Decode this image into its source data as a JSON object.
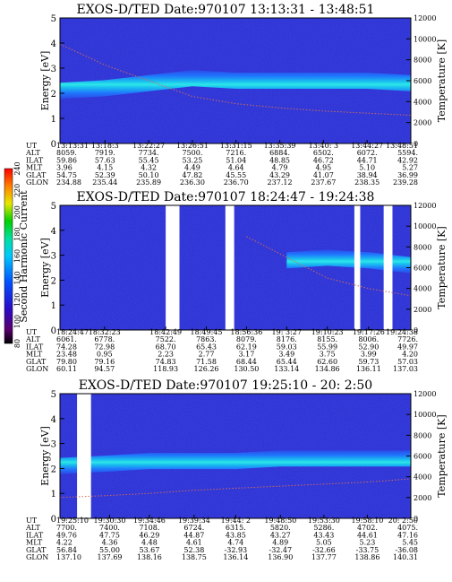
{
  "panels": [
    {
      "title": "EXOS-D/TED   Date:970107   13:13:31 - 13:48:51",
      "ylabel_left": "Energy [eV]",
      "ylabel_right": "Temperature [K]",
      "y_ticks_left": [
        "0",
        "1",
        "2",
        "3",
        "4",
        "5"
      ],
      "y_ticks_right": [
        "0",
        "2000",
        "4000",
        "6000",
        "8000",
        "10000",
        "12000"
      ],
      "ephemeris": {
        "row_labels": [
          "UT",
          "ALT",
          "ILAT",
          "MLT",
          "GLAT",
          "GLON"
        ],
        "columns": [
          [
            "13:13:31",
            "8059.",
            "59.86",
            "3.96",
            "54.75",
            "234.88"
          ],
          [
            "13:18:3",
            "7919.",
            "57.63",
            "4.15",
            "52.39",
            "235.44"
          ],
          [
            "13:22:27",
            "7734.",
            "55.45",
            "4.32",
            "50.10",
            "235.89"
          ],
          [
            "13:26:51",
            "7500.",
            "53.25",
            "4.49",
            "47.82",
            "236.30"
          ],
          [
            "13:31:15",
            "7216.",
            "51.04",
            "4.64",
            "45.55",
            "236.70"
          ],
          [
            "13:35:39",
            "6884.",
            "48.85",
            "4.79",
            "43.29",
            "237.12"
          ],
          [
            "13:40: 3",
            "6502.",
            "46.72",
            "4.95",
            "41.07",
            "237.67"
          ],
          [
            "13:44:27",
            "6072.",
            "44.71",
            "5.10",
            "38.94",
            "238.35"
          ],
          [
            "13:48:51",
            "5594.",
            "42.92",
            "5.27",
            "36.99",
            "239.28"
          ]
        ]
      }
    },
    {
      "title": "EXOS-D/TED   Date:970107   18:24:47 - 19:24:38",
      "ylabel_left": "Energy [eV]",
      "ylabel_right": "Temperature [K]",
      "y_ticks_left": [
        "0",
        "1",
        "2",
        "3",
        "4",
        "5"
      ],
      "y_ticks_right": [
        "0",
        "2000",
        "4000",
        "6000",
        "8000",
        "10000",
        "12000"
      ],
      "ephemeris": {
        "row_labels": [
          "UT",
          "ALT",
          "ILAT",
          "MLT",
          "GLAT",
          "GLON"
        ],
        "columns": [
          [
            "18:24:47",
            "6061.",
            "74.28",
            "23.48",
            "79.80",
            "60.11"
          ],
          [
            "18:32:23",
            "6778.",
            "72.98",
            "0.95",
            "79.16",
            "94.57"
          ],
          [
            "18:42:49",
            "7522.",
            "68.70",
            "2.23",
            "74.83",
            "118.93"
          ],
          [
            "18:49:45",
            "7863.",
            "65.43",
            "2.77",
            "71.58",
            "126.26"
          ],
          [
            "18:56:36",
            "8079.",
            "62.19",
            "3.17",
            "68.44",
            "130.50"
          ],
          [
            "19: 3:27",
            "8176.",
            "59.03",
            "3.49",
            "65.44",
            "133.14"
          ],
          [
            "19:10:23",
            "8155.",
            "55.99",
            "3.75",
            "62.60",
            "134.86"
          ],
          [
            "19:17:26",
            "8006.",
            "52.90",
            "3.99",
            "59.73",
            "136.11"
          ],
          [
            "19:24:38",
            "7726.",
            "49.97",
            "4.20",
            "57.03",
            "137.03"
          ]
        ]
      }
    },
    {
      "title": "EXOS-D/TED   Date:970107   19:25:10 - 20: 2:50",
      "ylabel_left": "Energy [eV]",
      "ylabel_right": "Temperature [K]",
      "y_ticks_left": [
        "0",
        "1",
        "2",
        "3",
        "4",
        "5"
      ],
      "y_ticks_right": [
        "0",
        "2000",
        "4000",
        "6000",
        "8000",
        "10000",
        "12000"
      ],
      "ephemeris": {
        "row_labels": [
          "UT",
          "ALT",
          "ILAT",
          "MLT",
          "GLAT",
          "GLON"
        ],
        "columns": [
          [
            "19:25:10",
            "7700.",
            "49.76",
            "4.22",
            "56.84",
            "137.10"
          ],
          [
            "19:30:30",
            "7400.",
            "47.75",
            "4.36",
            "55.00",
            "137.69"
          ],
          [
            "19:34:46",
            "7108.",
            "46.29",
            "4.48",
            "53.67",
            "138.16"
          ],
          [
            "19:39:34",
            "6724.",
            "44.87",
            "4.61",
            "52.38",
            "138.75"
          ],
          [
            "19:44: 2",
            "6315.",
            "43.85",
            "4.74",
            "-32.93",
            "136.14"
          ],
          [
            "19:48:50",
            "5820.",
            "43.27",
            "4.89",
            "-32.47",
            "136.90"
          ],
          [
            "19:53:30",
            "5286.",
            "43.43",
            "5.05",
            "-32.66",
            "137.77"
          ],
          [
            "19:58:10",
            "4702.",
            "44.61",
            "5.23",
            "-33.75",
            "138.86"
          ],
          [
            "20: 2:50",
            "4075.",
            "47.16",
            "5.45",
            "-36.08",
            "140.31"
          ]
        ]
      }
    }
  ],
  "colorbar": {
    "label": "Second Harmonic Current",
    "ticks": [
      "80",
      "100",
      "120",
      "140",
      "160",
      "180",
      "200",
      "220",
      "240"
    ]
  },
  "chart_data": [
    {
      "type": "heatmap",
      "title": "EXOS-D/TED   Date:970107   13:13:31 - 13:48:51",
      "xlabel": "UT",
      "ylabel": "Energy [eV]",
      "y2label": "Temperature [K]",
      "ylim": [
        0,
        5
      ],
      "y2lim": [
        0,
        12000
      ],
      "x": [
        "13:13:31",
        "13:18:3",
        "13:22:27",
        "13:26:51",
        "13:31:15",
        "13:35:39",
        "13:40: 3",
        "13:44:27",
        "13:48:51"
      ],
      "peak_energy_ev": [
        2.1,
        2.2,
        2.4,
        2.6,
        2.5,
        2.5,
        2.5,
        2.5,
        2.4
      ],
      "temperature_k": [
        9500,
        7500,
        6000,
        4500,
        3800,
        3400,
        3100,
        2900,
        2700
      ],
      "data_gaps": []
    },
    {
      "type": "heatmap",
      "title": "EXOS-D/TED   Date:970107   18:24:47 - 19:24:38",
      "xlabel": "UT",
      "ylabel": "Energy [eV]",
      "y2label": "Temperature [K]",
      "ylim": [
        0,
        5
      ],
      "y2lim": [
        0,
        12000
      ],
      "x": [
        "18:24:47",
        "18:32:23",
        "18:42:49",
        "18:49:45",
        "18:56:36",
        "19: 3:27",
        "19:10:23",
        "19:17:26",
        "19:24:38"
      ],
      "peak_energy_ev": [
        null,
        null,
        null,
        null,
        null,
        2.8,
        2.9,
        2.8,
        2.6
      ],
      "temperature_k": [
        null,
        null,
        null,
        null,
        9000,
        7000,
        5000,
        4000,
        3300
      ],
      "data_gaps": [
        [
          "18:42:49",
          "18:45:10"
        ],
        [
          "18:53:00",
          "18:54:30"
        ],
        [
          "19:15:00",
          "19:16:00"
        ],
        [
          "19:20:00",
          "19:21:30"
        ]
      ]
    },
    {
      "type": "heatmap",
      "title": "EXOS-D/TED   Date:970107   19:25:10 - 20: 2:50",
      "xlabel": "UT",
      "ylabel": "Energy [eV]",
      "y2label": "Temperature [K]",
      "ylim": [
        0,
        5
      ],
      "y2lim": [
        0,
        12000
      ],
      "x": [
        "19:25:10",
        "19:30:30",
        "19:34:46",
        "19:39:34",
        "19:44: 2",
        "19:48:50",
        "19:53:30",
        "19:58:10",
        "20: 2:50"
      ],
      "peak_energy_ev": [
        2.1,
        2.2,
        2.3,
        2.3,
        2.3,
        2.4,
        2.4,
        2.4,
        2.4
      ],
      "temperature_k": [
        2000,
        2200,
        2400,
        2700,
        2900,
        3100,
        3300,
        3500,
        3800
      ],
      "data_gaps": [
        [
          "19:27:00",
          "19:28:30"
        ]
      ]
    }
  ]
}
